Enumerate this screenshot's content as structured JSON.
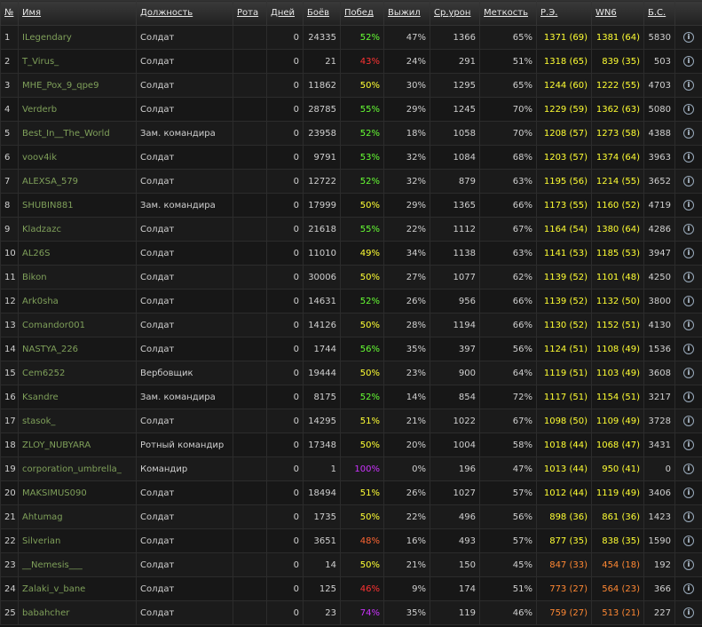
{
  "table": {
    "headers": [
      "№",
      "Имя",
      "Должность",
      "Рота",
      "Дней",
      "Боёв",
      "Побед",
      "Выжил",
      "Ср.урон",
      "Меткость",
      "Р.Э.",
      "WN6",
      "Б.С."
    ],
    "rows": [
      [
        "1",
        "ILegendary",
        "Солдат",
        "",
        "0",
        "24335",
        "52%",
        "47%",
        "1366",
        "65%",
        "1371 (69)",
        "1381 (64)",
        "5830"
      ],
      [
        "2",
        "T_Virus_",
        "Солдат",
        "",
        "0",
        "21",
        "43%",
        "24%",
        "291",
        "51%",
        "1318 (65)",
        "839 (35)",
        "503"
      ],
      [
        "3",
        "MHE_Pox_9_qpe9",
        "Солдат",
        "",
        "0",
        "11862",
        "50%",
        "30%",
        "1295",
        "65%",
        "1244 (60)",
        "1222 (55)",
        "4703"
      ],
      [
        "4",
        "Verderb",
        "Солдат",
        "",
        "0",
        "28785",
        "55%",
        "29%",
        "1245",
        "70%",
        "1229 (59)",
        "1362 (63)",
        "5080"
      ],
      [
        "5",
        "Best_In__The_World",
        "Зам. командира",
        "",
        "0",
        "23958",
        "52%",
        "18%",
        "1058",
        "70%",
        "1208 (57)",
        "1273 (58)",
        "4388"
      ],
      [
        "6",
        "voov4ik",
        "Солдат",
        "",
        "0",
        "9791",
        "53%",
        "32%",
        "1084",
        "68%",
        "1203 (57)",
        "1374 (64)",
        "3963"
      ],
      [
        "7",
        "ALEXSA_579",
        "Солдат",
        "",
        "0",
        "12722",
        "52%",
        "32%",
        "879",
        "63%",
        "1195 (56)",
        "1214 (55)",
        "3652"
      ],
      [
        "8",
        "SHUBIN881",
        "Зам. командира",
        "",
        "0",
        "17999",
        "50%",
        "29%",
        "1365",
        "66%",
        "1173 (55)",
        "1160 (52)",
        "4719"
      ],
      [
        "9",
        "Kladzazc",
        "Солдат",
        "",
        "0",
        "21618",
        "55%",
        "22%",
        "1112",
        "67%",
        "1164 (54)",
        "1380 (64)",
        "4286"
      ],
      [
        "10",
        "AL26S",
        "Солдат",
        "",
        "0",
        "11010",
        "49%",
        "34%",
        "1138",
        "63%",
        "1141 (53)",
        "1185 (53)",
        "3947"
      ],
      [
        "11",
        "Bikon",
        "Солдат",
        "",
        "0",
        "30006",
        "50%",
        "27%",
        "1077",
        "62%",
        "1139 (52)",
        "1101 (48)",
        "4250"
      ],
      [
        "12",
        "Ark0sha",
        "Солдат",
        "",
        "0",
        "14631",
        "52%",
        "26%",
        "956",
        "66%",
        "1139 (52)",
        "1132 (50)",
        "3800"
      ],
      [
        "13",
        "Comandor001",
        "Солдат",
        "",
        "0",
        "14126",
        "50%",
        "28%",
        "1194",
        "66%",
        "1130 (52)",
        "1152 (51)",
        "4130"
      ],
      [
        "14",
        "NASTYA_226",
        "Солдат",
        "",
        "0",
        "1744",
        "56%",
        "35%",
        "397",
        "56%",
        "1124 (51)",
        "1108 (49)",
        "1536"
      ],
      [
        "15",
        "Cem6252",
        "Вербовщик",
        "",
        "0",
        "19444",
        "50%",
        "23%",
        "900",
        "64%",
        "1119 (51)",
        "1103 (49)",
        "3608"
      ],
      [
        "16",
        "Ksandre",
        "Зам. командира",
        "",
        "0",
        "8175",
        "52%",
        "14%",
        "854",
        "72%",
        "1117 (51)",
        "1154 (51)",
        "3217"
      ],
      [
        "17",
        "stasok_",
        "Солдат",
        "",
        "0",
        "14295",
        "51%",
        "21%",
        "1022",
        "67%",
        "1098 (50)",
        "1109 (49)",
        "3728"
      ],
      [
        "18",
        "ZLOY_NUBYARA",
        "Ротный командир",
        "",
        "0",
        "17348",
        "50%",
        "20%",
        "1004",
        "58%",
        "1018 (44)",
        "1068 (47)",
        "3431"
      ],
      [
        "19",
        "corporation_umbrella_",
        "Командир",
        "",
        "0",
        "1",
        "100%",
        "0%",
        "196",
        "47%",
        "1013 (44)",
        "950 (41)",
        "0"
      ],
      [
        "20",
        "MAKSIMUS090",
        "Солдат",
        "",
        "0",
        "18494",
        "51%",
        "26%",
        "1027",
        "57%",
        "1012 (44)",
        "1119 (49)",
        "3406"
      ],
      [
        "21",
        "Ahtumag",
        "Солдат",
        "",
        "0",
        "1735",
        "50%",
        "22%",
        "496",
        "56%",
        "898 (36)",
        "861 (36)",
        "1423"
      ],
      [
        "22",
        "Silverian",
        "Солдат",
        "",
        "0",
        "3651",
        "48%",
        "16%",
        "493",
        "57%",
        "877 (35)",
        "838 (35)",
        "1590"
      ],
      [
        "23",
        "__Nemesis___",
        "Солдат",
        "",
        "0",
        "14",
        "50%",
        "21%",
        "150",
        "45%",
        "847 (33)",
        "454 (18)",
        "192"
      ],
      [
        "24",
        "Zalaki_v_bane",
        "Солдат",
        "",
        "0",
        "125",
        "46%",
        "9%",
        "174",
        "51%",
        "773 (27)",
        "564 (23)",
        "366"
      ],
      [
        "25",
        "babahcher",
        "Солдат",
        "",
        "0",
        "23",
        "74%",
        "35%",
        "119",
        "46%",
        "759 (27)",
        "513 (21)",
        "227"
      ]
    ],
    "cell_colors": [
      [
        "#66ff33",
        "#ffff33",
        "#ffff33"
      ],
      [
        "#ff3333",
        "#ffff33",
        "#ffff33"
      ],
      [
        "#ffff33",
        "#ffff33",
        "#ffff33"
      ],
      [
        "#66ff33",
        "#ffff33",
        "#ffff33"
      ],
      [
        "#66ff33",
        "#ffff33",
        "#ffff33"
      ],
      [
        "#66ff33",
        "#ffff33",
        "#ffff33"
      ],
      [
        "#66ff33",
        "#ffff33",
        "#ffff33"
      ],
      [
        "#ffff33",
        "#ffff33",
        "#ffff33"
      ],
      [
        "#66ff33",
        "#ffff33",
        "#ffff33"
      ],
      [
        "#ffff33",
        "#ffff33",
        "#ffff33"
      ],
      [
        "#ffff33",
        "#ffff33",
        "#ffff33"
      ],
      [
        "#66ff33",
        "#ffff33",
        "#ffff33"
      ],
      [
        "#ffff33",
        "#ffff33",
        "#ffff33"
      ],
      [
        "#66ff33",
        "#ffff33",
        "#ffff33"
      ],
      [
        "#ffff33",
        "#ffff33",
        "#ffff33"
      ],
      [
        "#66ff33",
        "#ffff33",
        "#ffff33"
      ],
      [
        "#ffff33",
        "#ffff33",
        "#ffff33"
      ],
      [
        "#ffff33",
        "#ffff33",
        "#ffff33"
      ],
      [
        "#cc33ff",
        "#ffff33",
        "#ffff33"
      ],
      [
        "#ffff33",
        "#ffff33",
        "#ffff33"
      ],
      [
        "#ffff33",
        "#ffff33",
        "#ffff33"
      ],
      [
        "#ff6633",
        "#ffff33",
        "#ffff33"
      ],
      [
        "#ffff33",
        "#ff8833",
        "#ff8833"
      ],
      [
        "#ff3333",
        "#ff8833",
        "#ff8833"
      ],
      [
        "#cc33ff",
        "#ff8833",
        "#ff8833"
      ]
    ]
  }
}
